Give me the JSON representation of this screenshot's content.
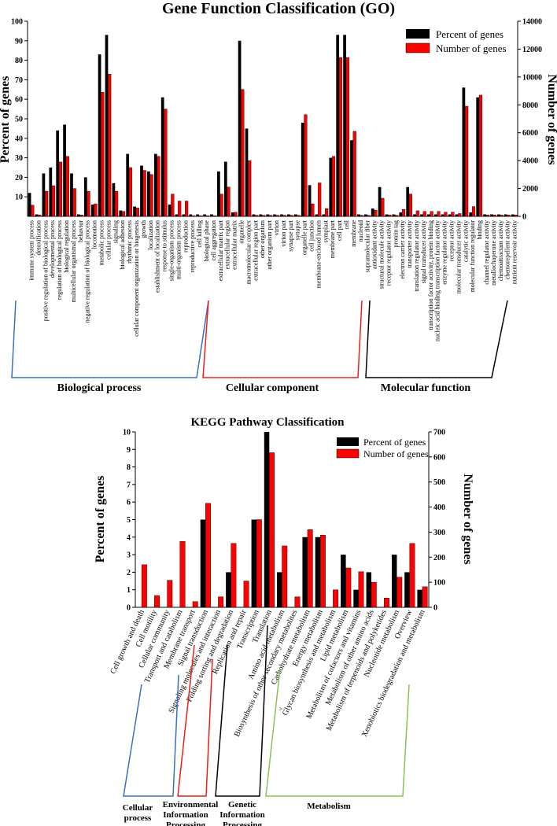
{
  "chart_data": [
    {
      "type": "bar",
      "title": "Gene Function Classification (GO)",
      "ylabel": "Percent of genes",
      "y2label": "Number of genes",
      "ylim": [
        0,
        100
      ],
      "y2lim": [
        0,
        14000
      ],
      "yticks": [
        "10",
        "20",
        "30",
        "40",
        "50",
        "60",
        "70",
        "80",
        "90",
        "100"
      ],
      "y2ticks": [
        "0",
        "2000",
        "4000",
        "6000",
        "8000",
        "10000",
        "12000",
        "14000"
      ],
      "legend_position": "top-right",
      "categories": [
        "immune system process",
        "detoxification",
        "positive regulation of biological process",
        "developmental process",
        "regulation of biological process",
        "biological regulation",
        "multicellular organismal process",
        "behavior",
        "negative regulation of biological process",
        "locomotion",
        "metabolic process",
        "cellular process",
        "signaling",
        "biological adhesion",
        "rhythmic process",
        "cellular component organization or biogenesis",
        "growth",
        "localization",
        "establishment of localization",
        "response to stimulus",
        "single-organism process",
        "multi-organism process",
        "reproduction",
        "reproductive process",
        "cell killing",
        "biological phase",
        "cell aggregation",
        "extracellular matrix part",
        "extracellular region",
        "extracellular matrix",
        "organelle",
        "macromolecular complex",
        "extracellular region part",
        "other organism",
        "other organism part",
        "virion",
        "virion part",
        "synapse part",
        "synapse",
        "organelle part",
        "cell junction",
        "membrane-enclosed lumen",
        "symplast",
        "membrane part",
        "cell part",
        "cell",
        "membrane",
        "nucleoid",
        "supramolecular fiber",
        "antioxidant activity",
        "structural molecule activity",
        "receptor regulator activity",
        "protein tag",
        "electron carrier activity",
        "transporter activity",
        "translation regulator activity",
        "signal transducer activity",
        "transcription factor activity, protein binding",
        "nucleic acid binding transcription factor activity",
        "enzyme regulator activity",
        "receptor activity",
        "molecular transducer activity",
        "catalytic activity",
        "molecular function regulator",
        "binding",
        "channel regulator activity",
        "metallochaperone activity",
        "chemoattractant activity",
        "chemorepellent activity",
        "nutrient reservoir activity"
      ],
      "series": [
        {
          "name": "Percent of genes",
          "color": "#000000",
          "axis": "left",
          "values": [
            12,
            1,
            22,
            25,
            44,
            47,
            22,
            1,
            20,
            6,
            83,
            93,
            17,
            3,
            32,
            5,
            26,
            23,
            32,
            61,
            6,
            1,
            1,
            1,
            1,
            1,
            1,
            23,
            28,
            2,
            90,
            45,
            1,
            1,
            1,
            1,
            1,
            1,
            1,
            48,
            16,
            1,
            1,
            30,
            93,
            93,
            39,
            1,
            1,
            4,
            15,
            1,
            1,
            2,
            15,
            1,
            1,
            1,
            1,
            1,
            1,
            1,
            66,
            2,
            61,
            1,
            1,
            1,
            1,
            1
          ]
        },
        {
          "name": "Number of genes",
          "color": "#ff0000",
          "axis": "right",
          "values": [
            800,
            100,
            1800,
            2200,
            3900,
            4300,
            2000,
            100,
            1800,
            900,
            8900,
            10200,
            1800,
            350,
            3500,
            600,
            3300,
            3000,
            4300,
            7700,
            1600,
            1100,
            1100,
            50,
            50,
            50,
            50,
            1600,
            2100,
            300,
            9100,
            4000,
            80,
            80,
            80,
            80,
            80,
            80,
            80,
            7300,
            900,
            2400,
            550,
            4300,
            11400,
            11400,
            6100,
            80,
            80,
            450,
            1300,
            100,
            80,
            500,
            1600,
            400,
            350,
            350,
            350,
            300,
            300,
            200,
            7900,
            700,
            8700,
            100,
            100,
            100,
            100,
            100
          ]
        }
      ],
      "groups": [
        "Biological process",
        "Cellular component",
        "Molecular function"
      ],
      "group_colors": [
        "#3b6fc4",
        "#e8211a",
        "#000000"
      ]
    },
    {
      "type": "bar",
      "title": "KEGG Pathway Classification",
      "ylabel": "Percent of genes",
      "y2label": "Number of genes",
      "ylim": [
        0,
        10
      ],
      "y2lim": [
        0,
        700
      ],
      "yticks": [
        "0",
        "1",
        "2",
        "3",
        "4",
        "5",
        "6",
        "7",
        "8",
        "9",
        "10"
      ],
      "y2ticks": [
        "0",
        "100",
        "200",
        "300",
        "400",
        "500",
        "600",
        "700"
      ],
      "legend_position": "top-right",
      "categories": [
        "Cell growth and death",
        "Cell motility",
        "Cellular community",
        "Transport and catabolism",
        "Membrane transport",
        "Signal transduction",
        "Signaling molecules and interaction",
        "Folding sorting and degradation",
        "Replication and repair",
        "Transcription",
        "Translation",
        "Amino acid metabolism",
        "Biosynthesis of other secondary metabolites",
        "Carbohydrate metabolism",
        "Energy metabolism",
        "Glycan biosynthesis and metabolism",
        "Lipid metabolism",
        "Metabolism of cofactors and vitamins",
        "Metabolism of other amino acids",
        "Metabolism of terpenoids and polyketides",
        "Nucleotide metabolism",
        "Overview",
        "Xenobiotics biodegradation and metabolism"
      ],
      "series": [
        {
          "name": "Percent of genes",
          "color": "#000000",
          "axis": "left",
          "values": [
            0,
            0,
            0,
            0,
            0,
            5,
            0,
            2,
            0,
            5,
            10,
            2,
            0,
            4,
            4,
            0,
            3,
            1,
            2,
            0,
            3,
            2,
            1
          ]
        },
        {
          "name": "Number of genes",
          "color": "#ff0000",
          "axis": "right",
          "values": [
            170,
            47,
            108,
            263,
            23,
            415,
            42,
            255,
            105,
            350,
            617,
            245,
            42,
            310,
            288,
            70,
            157,
            142,
            100,
            37,
            120,
            255,
            82
          ]
        }
      ],
      "groups": [
        "Cellular process",
        "Environmental Information Processing",
        "Genetic Information Processing",
        "Metabolism"
      ],
      "group_colors": [
        "#3b6fc4",
        "#e8211a",
        "#000000",
        "#8dc04f"
      ],
      "extra_mark": ">"
    }
  ]
}
